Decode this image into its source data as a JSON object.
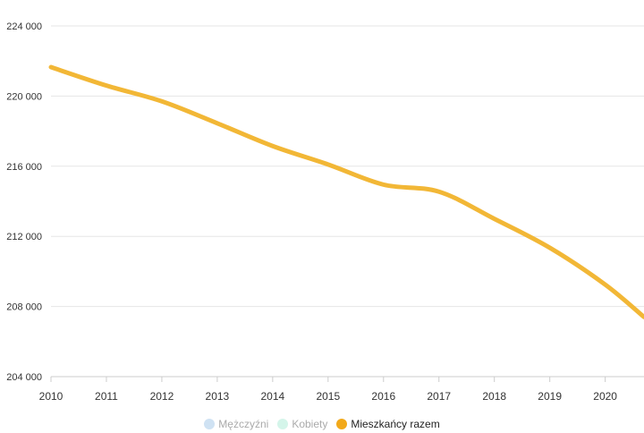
{
  "chart_data": {
    "type": "line",
    "x": [
      2010,
      2011,
      2012,
      2013,
      2014,
      2015,
      2016,
      2017,
      2018,
      2019,
      2020,
      2020.7
    ],
    "series": [
      {
        "name": "Mieszkańcy razem",
        "color": "#f2b736",
        "values": [
          221650,
          220600,
          219700,
          218450,
          217150,
          216100,
          214950,
          214550,
          213000,
          211350,
          209250,
          207400
        ]
      }
    ],
    "xticks": [
      "2010",
      "2011",
      "2012",
      "2013",
      "2014",
      "2015",
      "2016",
      "2017",
      "2018",
      "2019",
      "2020"
    ],
    "yticks": [
      "204 000",
      "208 000",
      "212 000",
      "216 000",
      "220 000",
      "224 000"
    ],
    "ylim": [
      204000,
      224000
    ],
    "xlim": [
      2010,
      2010.7
    ],
    "grid": true,
    "legend_position": "bottom"
  },
  "legend": [
    {
      "label": "Mężczyźni",
      "color": "#cfe2f3",
      "active": false
    },
    {
      "label": "Kobiety",
      "color": "#d4f5ea",
      "active": false
    },
    {
      "label": "Mieszkańcy razem",
      "color": "#f2a91a",
      "active": true
    }
  ]
}
